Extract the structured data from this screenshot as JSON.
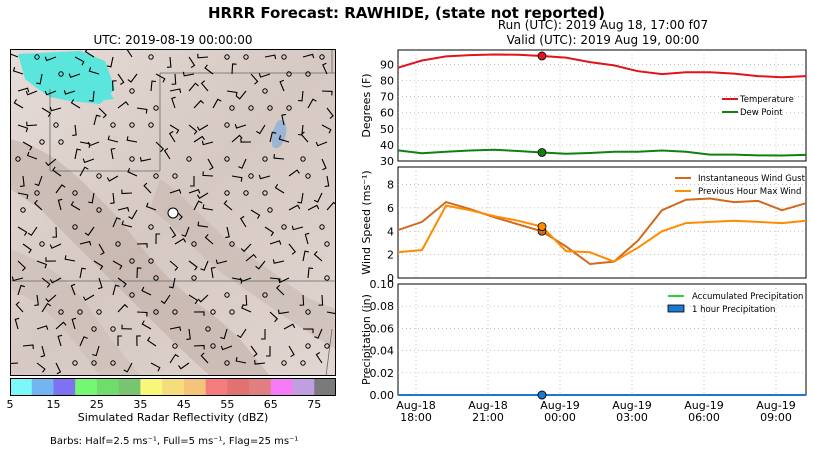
{
  "figure": {
    "title": "HRRR Forecast: RAWHIDE, (state not reported)",
    "run_line": "Run (UTC): 2019 Aug 18, 17:00 f07",
    "valid_line": "Valid (UTC): 2019 Aug 19, 00:00"
  },
  "map": {
    "title": "UTC: 2019-08-19 00:00:00",
    "colorbar_label": "Simulated Radar Reflectivity (dBZ)",
    "colorbar_ticks": [
      "5",
      "15",
      "25",
      "35",
      "45",
      "55",
      "65",
      "75"
    ],
    "colorbar_colors": [
      "#7df8f8",
      "#73b5f0",
      "#7f72f0",
      "#74f873",
      "#6fdc6c",
      "#78c472",
      "#f8f779",
      "#f5dd7e",
      "#f4c47b",
      "#f57c7c",
      "#e27171",
      "#e07f7f",
      "#f67bf6",
      "#c19ee0",
      "#7a7a7a"
    ],
    "barb_note": "Barbs: Half=2.5 ms⁻¹, Full=5 ms⁻¹, Flag=25 ms⁻¹"
  },
  "colors": {
    "temperature": "#e0141a",
    "dew_point": "#118011",
    "wind_gust": "#d2691e",
    "max_wind": "#ff8c00",
    "accum_precip": "#32cd32",
    "hour_precip": "#1e78d2"
  },
  "chart_data": [
    {
      "type": "line",
      "ylabel": "Degrees (F)",
      "ylim": [
        30,
        99
      ],
      "yticks": [
        30,
        40,
        50,
        60,
        70,
        80,
        90
      ],
      "grid": true,
      "legend_position": "right",
      "highlight_x": 6,
      "series": [
        {
          "name": "Temperature",
          "values": [
            88,
            92.5,
            95,
            95.8,
            96.2,
            96,
            95.3,
            94.3,
            91.5,
            89.4,
            85.8,
            84,
            85.2,
            85.2,
            84.3,
            82.8,
            82,
            82.8
          ]
        },
        {
          "name": "Dew Point",
          "values": [
            36.6,
            34.8,
            35.8,
            36.5,
            37,
            36.2,
            35.3,
            34.5,
            35,
            35.8,
            35.8,
            36.5,
            35.8,
            34,
            34,
            33.5,
            33.4,
            33.8
          ]
        }
      ]
    },
    {
      "type": "line",
      "ylabel": "Wind Speed (ms⁻¹)",
      "ylim": [
        0,
        9.5
      ],
      "yticks": [
        0,
        2,
        4,
        6,
        8
      ],
      "grid": true,
      "legend_position": "top-right",
      "highlight_x": 6,
      "series": [
        {
          "name": "Instantaneous Wind Gust",
          "values": [
            4.1,
            4.8,
            6.5,
            5.9,
            5.2,
            4.6,
            4.0,
            2.7,
            1.2,
            1.4,
            3.2,
            5.8,
            6.7,
            6.8,
            6.5,
            6.6,
            5.8,
            6.4
          ]
        },
        {
          "name": "Previous Hour Max Wind",
          "values": [
            2.2,
            2.4,
            6.2,
            5.8,
            5.3,
            4.9,
            4.4,
            2.3,
            2.2,
            1.4,
            2.6,
            4.0,
            4.7,
            4.8,
            4.9,
            4.8,
            4.7,
            4.9
          ]
        }
      ]
    },
    {
      "type": "line",
      "ylabel": "Precipitation (in)",
      "ylim": [
        0,
        0.1
      ],
      "yticks": [
        "0.00",
        "0.02",
        "0.04",
        "0.06",
        "0.08",
        "0.10"
      ],
      "grid": true,
      "legend_position": "top-right",
      "highlight_x": 6,
      "x_ticks": [
        {
          "x": 0.75,
          "date": "Aug-18",
          "time": "18:00"
        },
        {
          "x": 3.75,
          "date": "Aug-18",
          "time": "21:00"
        },
        {
          "x": 6.75,
          "date": "Aug-19",
          "time": "00:00"
        },
        {
          "x": 9.75,
          "date": "Aug-19",
          "time": "03:00"
        },
        {
          "x": 12.75,
          "date": "Aug-19",
          "time": "06:00"
        },
        {
          "x": 15.75,
          "date": "Aug-19",
          "time": "09:00"
        }
      ],
      "series": [
        {
          "name": "Accumulated Precipitation",
          "values": [
            0,
            0,
            0,
            0,
            0,
            0,
            0,
            0,
            0,
            0,
            0,
            0,
            0,
            0,
            0,
            0,
            0,
            0
          ]
        },
        {
          "name": "1 hour Precipitation",
          "values": [
            0,
            0,
            0,
            0,
            0,
            0,
            0,
            0,
            0,
            0,
            0,
            0,
            0,
            0,
            0,
            0,
            0,
            0
          ]
        }
      ]
    }
  ]
}
